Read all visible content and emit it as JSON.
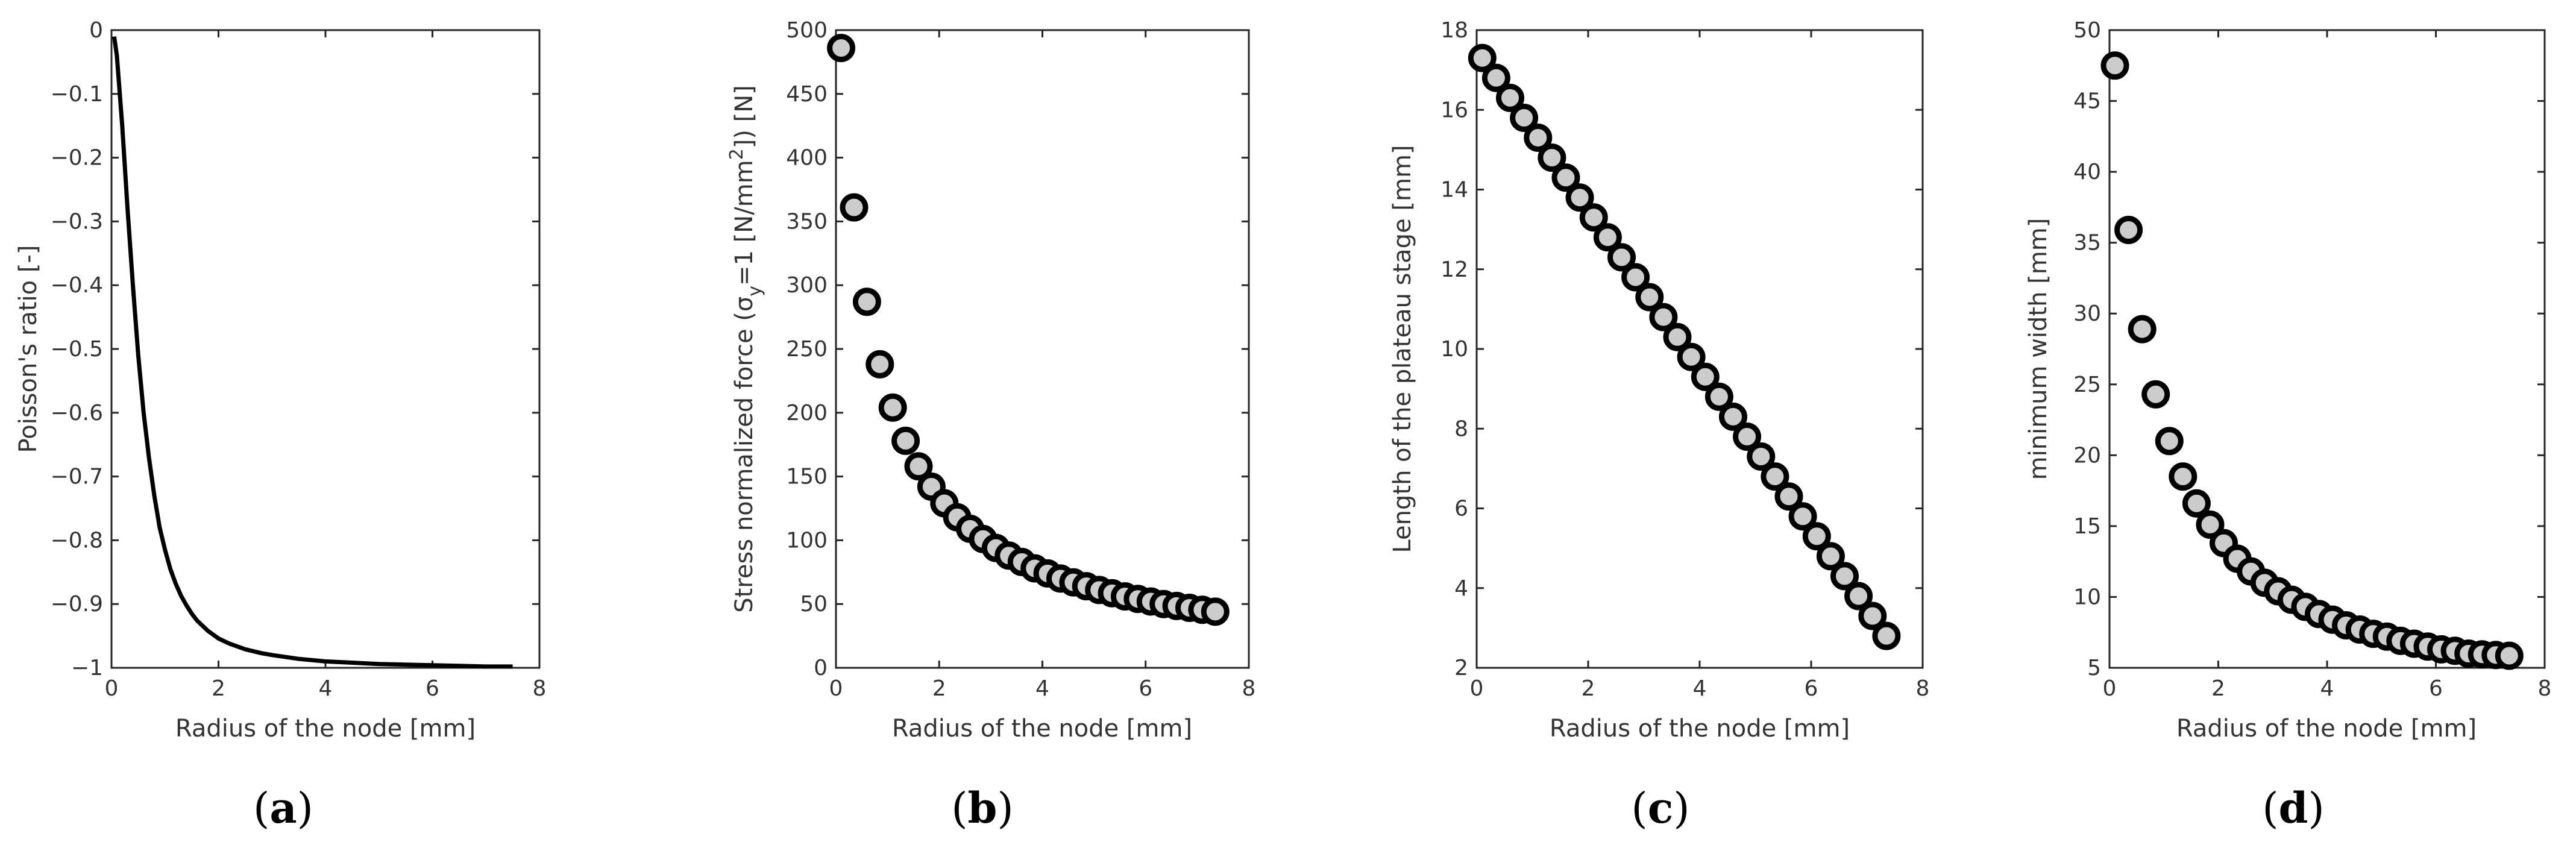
{
  "chart_data": [
    {
      "panel": "(a)",
      "panel_letter": "a",
      "type": "line",
      "xlabel": "Radius of the node [mm]",
      "ylabel": "Poisson's ratio [-]",
      "xlim": [
        0,
        8
      ],
      "ylim": [
        -1,
        0
      ],
      "xticks": [
        0,
        2,
        4,
        6,
        8
      ],
      "yticks": [
        0,
        -0.1,
        -0.2,
        -0.3,
        -0.4,
        -0.5,
        -0.6,
        -0.7,
        -0.8,
        -0.9,
        -1
      ],
      "series": [
        {
          "name": "Poisson's ratio",
          "x": [
            0.05,
            0.1,
            0.2,
            0.3,
            0.4,
            0.5,
            0.6,
            0.7,
            0.8,
            0.9,
            1.0,
            1.1,
            1.2,
            1.3,
            1.4,
            1.5,
            1.6,
            1.8,
            2.0,
            2.2,
            2.5,
            2.8,
            3.0,
            3.5,
            4.0,
            4.5,
            5.0,
            5.5,
            6.0,
            6.5,
            7.0,
            7.5
          ],
          "y": [
            -0.01,
            -0.04,
            -0.15,
            -0.28,
            -0.4,
            -0.51,
            -0.6,
            -0.67,
            -0.73,
            -0.78,
            -0.815,
            -0.845,
            -0.868,
            -0.887,
            -0.902,
            -0.915,
            -0.926,
            -0.942,
            -0.954,
            -0.962,
            -0.971,
            -0.977,
            -0.98,
            -0.986,
            -0.99,
            -0.992,
            -0.994,
            -0.995,
            -0.996,
            -0.997,
            -0.998,
            -0.998
          ]
        }
      ]
    },
    {
      "panel": "(b)",
      "panel_letter": "b",
      "type": "scatter",
      "xlabel": "Radius of the node [mm]",
      "ylabel_main": "Stress normalized force (σ",
      "ylabel_sub": "y",
      "ylabel_mid": "=1 [N/mm",
      "ylabel_sup": "2",
      "ylabel_end": "]) [N]",
      "xlim": [
        0,
        8
      ],
      "ylim": [
        0,
        500
      ],
      "xticks": [
        0,
        2,
        4,
        6,
        8
      ],
      "yticks": [
        0,
        50,
        100,
        150,
        200,
        250,
        300,
        350,
        400,
        450,
        500
      ],
      "series": [
        {
          "name": "Force",
          "x": [
            0.1,
            0.35,
            0.6,
            0.85,
            1.1,
            1.35,
            1.6,
            1.85,
            2.1,
            2.35,
            2.6,
            2.85,
            3.1,
            3.35,
            3.6,
            3.85,
            4.1,
            4.35,
            4.6,
            4.85,
            5.1,
            5.35,
            5.6,
            5.85,
            6.1,
            6.35,
            6.6,
            6.85,
            7.1,
            7.35
          ],
          "y": [
            486,
            361,
            287,
            238,
            204,
            178,
            158,
            142,
            129,
            118,
            109,
            101,
            94,
            88,
            83,
            78,
            74,
            70,
            67,
            64,
            61,
            58.5,
            56,
            54,
            52,
            50,
            48.5,
            47,
            45.5,
            44
          ]
        }
      ]
    },
    {
      "panel": "(c)",
      "panel_letter": "c",
      "type": "scatter",
      "xlabel": "Radius of the node [mm]",
      "ylabel": "Length of the plateau stage [mm]",
      "xlim": [
        0,
        8
      ],
      "ylim": [
        2,
        18
      ],
      "xticks": [
        0,
        2,
        4,
        6,
        8
      ],
      "yticks": [
        2,
        4,
        6,
        8,
        10,
        12,
        14,
        16,
        18
      ],
      "series": [
        {
          "name": "Plateau length",
          "x": [
            0.1,
            0.35,
            0.6,
            0.85,
            1.1,
            1.35,
            1.6,
            1.85,
            2.1,
            2.35,
            2.6,
            2.85,
            3.1,
            3.35,
            3.6,
            3.85,
            4.1,
            4.35,
            4.6,
            4.85,
            5.1,
            5.35,
            5.6,
            5.85,
            6.1,
            6.35,
            6.6,
            6.85,
            7.1,
            7.35
          ],
          "y": [
            17.3,
            16.8,
            16.3,
            15.8,
            15.3,
            14.8,
            14.3,
            13.8,
            13.3,
            12.8,
            12.3,
            11.8,
            11.3,
            10.8,
            10.3,
            9.8,
            9.3,
            8.8,
            8.3,
            7.8,
            7.3,
            6.8,
            6.3,
            5.8,
            5.3,
            4.8,
            4.3,
            3.8,
            3.3,
            2.8
          ]
        }
      ]
    },
    {
      "panel": "(d)",
      "panel_letter": "d",
      "type": "scatter",
      "xlabel": "Radius of the node [mm]",
      "ylabel": "minimum width [mm]",
      "xlim": [
        0,
        8
      ],
      "ylim": [
        5,
        50
      ],
      "xticks": [
        0,
        2,
        4,
        6,
        8
      ],
      "yticks": [
        5,
        10,
        15,
        20,
        25,
        30,
        35,
        40,
        45,
        50
      ],
      "series": [
        {
          "name": "Minimum width",
          "x": [
            0.1,
            0.35,
            0.6,
            0.85,
            1.1,
            1.35,
            1.6,
            1.85,
            2.1,
            2.35,
            2.6,
            2.85,
            3.1,
            3.35,
            3.6,
            3.85,
            4.1,
            4.35,
            4.6,
            4.85,
            5.1,
            5.35,
            5.6,
            5.85,
            6.1,
            6.35,
            6.6,
            6.85,
            7.1,
            7.35
          ],
          "y": [
            47.5,
            35.9,
            28.9,
            24.3,
            21.0,
            18.5,
            16.6,
            15.1,
            13.8,
            12.7,
            11.8,
            11.0,
            10.4,
            9.8,
            9.3,
            8.8,
            8.4,
            8.0,
            7.7,
            7.4,
            7.2,
            6.9,
            6.7,
            6.5,
            6.3,
            6.2,
            6.0,
            5.95,
            5.9,
            5.85
          ]
        }
      ]
    }
  ]
}
